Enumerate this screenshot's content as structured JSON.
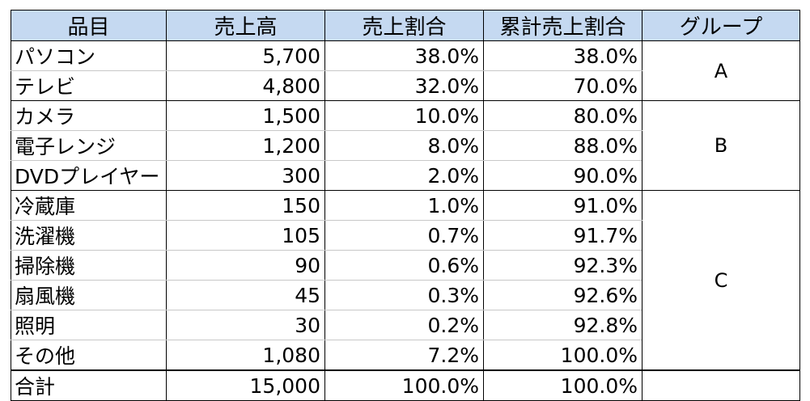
{
  "table": {
    "headers": [
      "品目",
      "売上高",
      "売上割合",
      "累計売上割合",
      "グループ"
    ],
    "groups": [
      {
        "label": "A",
        "rows": [
          {
            "item": "パソコン",
            "sales": "5,700",
            "share": "38.0%",
            "cumulative": "38.0%"
          },
          {
            "item": "テレビ",
            "sales": "4,800",
            "share": "32.0%",
            "cumulative": "70.0%"
          }
        ]
      },
      {
        "label": "B",
        "rows": [
          {
            "item": "カメラ",
            "sales": "1,500",
            "share": "10.0%",
            "cumulative": "80.0%"
          },
          {
            "item": "電子レンジ",
            "sales": "1,200",
            "share": "8.0%",
            "cumulative": "88.0%"
          },
          {
            "item": "DVDプレイヤー",
            "sales": "300",
            "share": "2.0%",
            "cumulative": "90.0%"
          }
        ]
      },
      {
        "label": "C",
        "rows": [
          {
            "item": "冷蔵庫",
            "sales": "150",
            "share": "1.0%",
            "cumulative": "91.0%"
          },
          {
            "item": "洗濯機",
            "sales": "105",
            "share": "0.7%",
            "cumulative": "91.7%"
          },
          {
            "item": "掃除機",
            "sales": "90",
            "share": "0.6%",
            "cumulative": "92.3%"
          },
          {
            "item": "扇風機",
            "sales": "45",
            "share": "0.3%",
            "cumulative": "92.6%"
          },
          {
            "item": "照明",
            "sales": "30",
            "share": "0.2%",
            "cumulative": "92.8%"
          },
          {
            "item": "その他",
            "sales": "1,080",
            "share": "7.2%",
            "cumulative": "100.0%"
          }
        ]
      }
    ],
    "total": {
      "item": "合計",
      "sales": "15,000",
      "share": "100.0%",
      "cumulative": "100.0%"
    },
    "colors": {
      "header_bg": "#c5d9f1",
      "border": "#000000",
      "inner_rule": "#c8c8c8"
    }
  }
}
